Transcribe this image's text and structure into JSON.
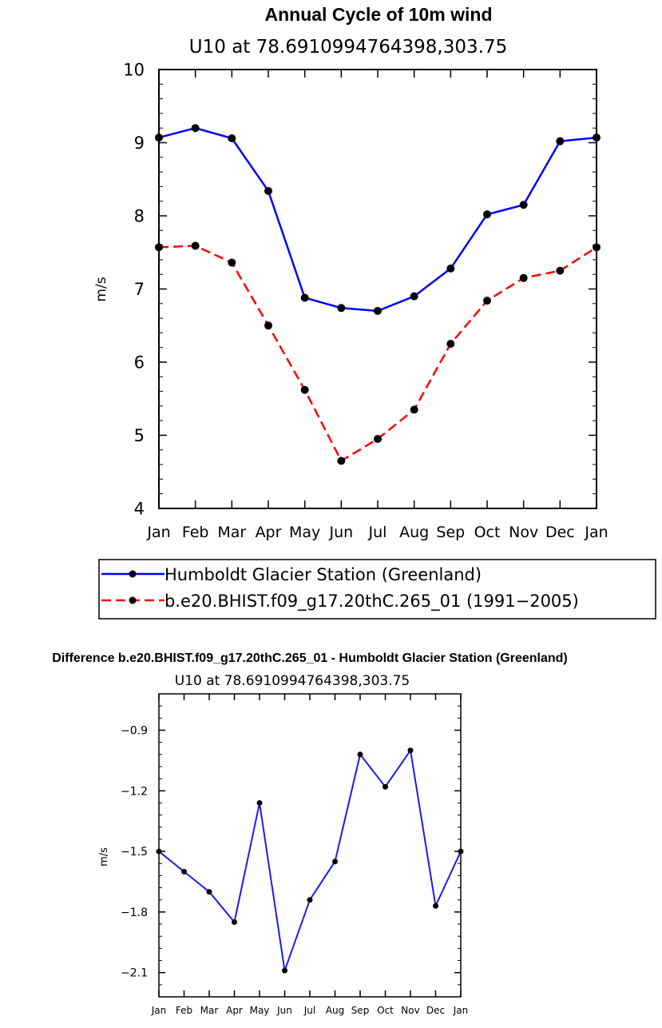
{
  "chart_data": [
    {
      "type": "line",
      "title": "Annual Cycle of 10m wind",
      "subtitle": "U10 at 78.6910994764398,303.75",
      "ylabel": "m/s",
      "xlabel": "",
      "categories": [
        "Jan",
        "Feb",
        "Mar",
        "Apr",
        "May",
        "Jun",
        "Jul",
        "Aug",
        "Sep",
        "Oct",
        "Nov",
        "Dec",
        "Jan"
      ],
      "ylim": [
        4,
        10
      ],
      "yticks": [
        "4",
        "5",
        "6",
        "7",
        "8",
        "9",
        "10"
      ],
      "series": [
        {
          "name": "Humboldt Glacier Station (Greenland)",
          "color": "#0000ff",
          "dash": "solid",
          "values": [
            9.07,
            9.2,
            9.06,
            8.34,
            6.88,
            6.74,
            6.7,
            6.9,
            7.28,
            8.02,
            8.15,
            9.02,
            9.07
          ]
        },
        {
          "name": "b.e20.BHIST.f09_g17.20thC.265_01 (1991−2005)",
          "color": "#ff0000",
          "dash": "dashed",
          "values": [
            7.57,
            7.59,
            7.36,
            6.5,
            5.62,
            4.65,
            4.95,
            5.35,
            6.25,
            6.84,
            7.15,
            7.25,
            7.57
          ]
        }
      ],
      "legend": "below"
    },
    {
      "type": "line",
      "title": "Difference b.e20.BHIST.f09_g17.20thC.265_01 - Humboldt Glacier Station (Greenland)",
      "subtitle": "U10 at 78.6910994764398,303.75",
      "ylabel": "m/s",
      "xlabel": "",
      "categories": [
        "Jan",
        "Feb",
        "Mar",
        "Apr",
        "May",
        "Jun",
        "Jul",
        "Aug",
        "Sep",
        "Oct",
        "Nov",
        "Dec",
        "Jan"
      ],
      "ylim": [
        -2.22,
        -0.72
      ],
      "yticks": [
        "−0.9",
        "−1.2",
        "−1.5",
        "−1.8",
        "−2.1"
      ],
      "ytick_values": [
        -0.9,
        -1.2,
        -1.5,
        -1.8,
        -2.1
      ],
      "series": [
        {
          "name": "Difference",
          "color": "#1a1aff",
          "dash": "solid",
          "values": [
            -1.5,
            -1.6,
            -1.7,
            -1.85,
            -1.26,
            -2.09,
            -1.74,
            -1.55,
            -1.02,
            -1.18,
            -1.0,
            -1.77,
            -1.5
          ]
        }
      ]
    }
  ]
}
